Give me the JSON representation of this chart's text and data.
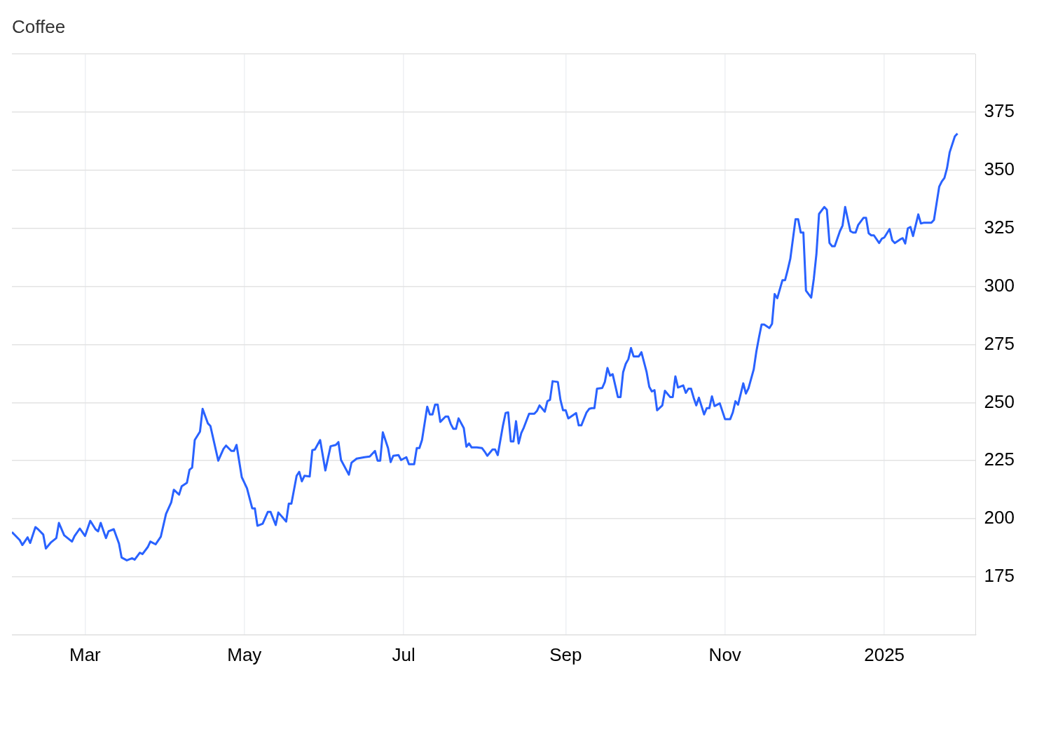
{
  "chart_data": {
    "type": "line",
    "title": "Coffee",
    "color": "#2962ff",
    "marker": "none",
    "grid": true,
    "xlim": [
      "2024-02-02",
      "2025-02-05"
    ],
    "xticks": [
      {
        "value": "2024-03-01",
        "label": "Mar"
      },
      {
        "value": "2024-05-01",
        "label": "May"
      },
      {
        "value": "2024-07-01",
        "label": "Jul"
      },
      {
        "value": "2024-09-01",
        "label": "Sep"
      },
      {
        "value": "2024-11-01",
        "label": "Nov"
      },
      {
        "value": "2025-01-01",
        "label": "2025"
      }
    ],
    "ylim": [
      150,
      400
    ],
    "yticks": [
      {
        "value": 150,
        "label": null
      },
      175,
      200,
      225,
      250,
      275,
      300,
      325,
      350,
      375,
      {
        "value": 400,
        "label": null
      }
    ],
    "x": [
      "2024-02-02",
      "2024-02-05",
      "2024-02-06",
      "2024-02-08",
      "2024-02-09",
      "2024-02-11",
      "2024-02-12",
      "2024-02-14",
      "2024-02-15",
      "2024-02-17",
      "2024-02-19",
      "2024-02-20",
      "2024-02-22",
      "2024-02-25",
      "2024-02-26",
      "2024-02-28",
      "2024-03-01",
      "2024-03-03",
      "2024-03-05",
      "2024-03-06",
      "2024-03-07",
      "2024-03-09",
      "2024-03-10",
      "2024-03-12",
      "2024-03-14",
      "2024-03-15",
      "2024-03-17",
      "2024-03-19",
      "2024-03-20",
      "2024-03-22",
      "2024-03-23",
      "2024-03-25",
      "2024-03-26",
      "2024-03-28",
      "2024-03-30",
      "2024-04-01",
      "2024-04-03",
      "2024-04-04",
      "2024-04-06",
      "2024-04-07",
      "2024-04-09",
      "2024-04-10",
      "2024-04-11",
      "2024-04-12",
      "2024-04-14",
      "2024-04-15",
      "2024-04-17",
      "2024-04-18",
      "2024-04-21",
      "2024-04-23",
      "2024-04-24",
      "2024-04-26",
      "2024-04-27",
      "2024-04-28",
      "2024-04-30",
      "2024-05-01",
      "2024-05-02",
      "2024-05-04",
      "2024-05-05",
      "2024-05-06",
      "2024-05-08",
      "2024-05-10",
      "2024-05-11",
      "2024-05-13",
      "2024-05-14",
      "2024-05-17",
      "2024-05-18",
      "2024-05-19",
      "2024-05-21",
      "2024-05-22",
      "2024-05-23",
      "2024-05-24",
      "2024-05-26",
      "2024-05-27",
      "2024-05-28",
      "2024-05-30",
      "2024-06-01",
      "2024-06-03",
      "2024-06-05",
      "2024-06-06",
      "2024-06-07",
      "2024-06-10",
      "2024-06-11",
      "2024-06-13",
      "2024-06-16",
      "2024-06-18",
      "2024-06-20",
      "2024-06-21",
      "2024-06-22",
      "2024-06-23",
      "2024-06-25",
      "2024-06-26",
      "2024-06-27",
      "2024-06-29",
      "2024-06-30",
      "2024-07-02",
      "2024-07-03",
      "2024-07-05",
      "2024-07-06",
      "2024-07-07",
      "2024-07-08",
      "2024-07-10",
      "2024-07-11",
      "2024-07-12",
      "2024-07-13",
      "2024-07-14",
      "2024-07-15",
      "2024-07-17",
      "2024-07-18",
      "2024-07-19",
      "2024-07-20",
      "2024-07-21",
      "2024-07-22",
      "2024-07-24",
      "2024-07-25",
      "2024-07-26",
      "2024-07-27",
      "2024-07-29",
      "2024-07-31",
      "2024-08-01",
      "2024-08-02",
      "2024-08-04",
      "2024-08-05",
      "2024-08-06",
      "2024-08-08",
      "2024-08-09",
      "2024-08-10",
      "2024-08-11",
      "2024-08-12",
      "2024-08-13",
      "2024-08-14",
      "2024-08-15",
      "2024-08-16",
      "2024-08-18",
      "2024-08-19",
      "2024-08-20",
      "2024-08-21",
      "2024-08-22",
      "2024-08-24",
      "2024-08-25",
      "2024-08-26",
      "2024-08-27",
      "2024-08-29",
      "2024-08-30",
      "2024-08-31",
      "2024-09-01",
      "2024-09-02",
      "2024-09-05",
      "2024-09-06",
      "2024-09-07",
      "2024-09-09",
      "2024-09-10",
      "2024-09-11",
      "2024-09-12",
      "2024-09-13",
      "2024-09-15",
      "2024-09-16",
      "2024-09-17",
      "2024-09-18",
      "2024-09-19",
      "2024-09-21",
      "2024-09-22",
      "2024-09-23",
      "2024-09-24",
      "2024-09-25",
      "2024-09-26",
      "2024-09-27",
      "2024-09-29",
      "2024-09-30",
      "2024-10-02",
      "2024-10-03",
      "2024-10-04",
      "2024-10-05",
      "2024-10-06",
      "2024-10-08",
      "2024-10-09",
      "2024-10-11",
      "2024-10-12",
      "2024-10-13",
      "2024-10-14",
      "2024-10-16",
      "2024-10-17",
      "2024-10-18",
      "2024-10-19",
      "2024-10-20",
      "2024-10-21",
      "2024-10-22",
      "2024-10-24",
      "2024-10-25",
      "2024-10-26",
      "2024-10-27",
      "2024-10-28",
      "2024-10-30",
      "2024-11-01",
      "2024-11-03",
      "2024-11-04",
      "2024-11-05",
      "2024-11-06",
      "2024-11-08",
      "2024-11-09",
      "2024-11-10",
      "2024-11-12",
      "2024-11-13",
      "2024-11-14",
      "2024-11-15",
      "2024-11-16",
      "2024-11-18",
      "2024-11-19",
      "2024-11-20",
      "2024-11-21",
      "2024-11-23",
      "2024-11-24",
      "2024-11-25",
      "2024-11-26",
      "2024-11-28",
      "2024-11-29",
      "2024-11-30",
      "2024-12-01",
      "2024-12-02",
      "2024-12-04",
      "2024-12-05",
      "2024-12-06",
      "2024-12-07",
      "2024-12-09",
      "2024-12-10",
      "2024-12-11",
      "2024-12-12",
      "2024-12-13",
      "2024-12-15",
      "2024-12-16",
      "2024-12-17",
      "2024-12-19",
      "2024-12-20",
      "2024-12-21",
      "2024-12-22",
      "2024-12-24",
      "2024-12-25",
      "2024-12-26",
      "2024-12-27",
      "2024-12-28",
      "2024-12-30",
      "2024-12-31",
      "2025-01-01",
      "2025-01-03",
      "2025-01-04",
      "2025-01-05",
      "2025-01-07",
      "2025-01-08",
      "2025-01-09",
      "2025-01-10",
      "2025-01-11",
      "2025-01-12",
      "2025-01-14",
      "2025-01-15",
      "2025-01-16",
      "2025-01-19",
      "2025-01-20",
      "2025-01-22",
      "2025-01-23",
      "2025-01-24",
      "2025-01-25",
      "2025-01-26",
      "2025-01-28",
      "2025-01-29"
    ],
    "values": [
      194.3,
      190.8,
      188.7,
      192.0,
      189.6,
      196.4,
      195.5,
      193.2,
      187.2,
      189.9,
      191.7,
      198.2,
      192.9,
      190.2,
      192.6,
      195.8,
      192.6,
      199.1,
      195.5,
      194.6,
      198.2,
      191.7,
      194.6,
      195.5,
      189.3,
      183.3,
      182.1,
      183.0,
      182.4,
      185.4,
      184.8,
      187.8,
      190.2,
      189.0,
      192.3,
      202.1,
      207.1,
      212.5,
      210.4,
      214.0,
      215.5,
      221.1,
      222.0,
      233.9,
      237.5,
      247.3,
      241.1,
      239.9,
      225.0,
      230.1,
      231.5,
      229.2,
      229.2,
      231.8,
      217.9,
      215.5,
      213.1,
      204.5,
      204.5,
      197.0,
      197.9,
      203.0,
      203.0,
      197.3,
      202.7,
      198.8,
      206.5,
      206.5,
      218.5,
      220.2,
      216.1,
      218.5,
      218.2,
      229.5,
      229.8,
      233.9,
      220.8,
      231.2,
      231.8,
      233.0,
      225.3,
      219.0,
      224.1,
      225.9,
      226.5,
      226.8,
      229.2,
      225.0,
      225.0,
      237.2,
      230.4,
      224.4,
      227.1,
      227.4,
      225.3,
      226.5,
      223.5,
      223.5,
      230.4,
      230.4,
      233.9,
      248.2,
      244.9,
      244.9,
      249.1,
      249.1,
      241.7,
      244.0,
      244.0,
      240.8,
      238.7,
      238.7,
      243.2,
      239.0,
      231.0,
      232.4,
      230.7,
      230.7,
      230.4,
      228.9,
      227.1,
      229.8,
      229.8,
      227.4,
      240.2,
      245.5,
      245.8,
      233.3,
      233.3,
      242.0,
      232.4,
      236.9,
      239.3,
      245.2,
      245.2,
      245.2,
      246.4,
      248.8,
      246.1,
      250.6,
      251.2,
      259.2,
      258.9,
      251.2,
      246.7,
      246.7,
      243.2,
      245.5,
      240.2,
      240.2,
      245.8,
      247.3,
      247.6,
      247.6,
      256.0,
      256.3,
      258.9,
      264.9,
      261.6,
      262.2,
      252.4,
      252.4,
      263.1,
      266.7,
      268.7,
      273.5,
      269.9,
      269.9,
      271.7,
      263.1,
      256.8,
      254.8,
      255.4,
      246.7,
      248.8,
      255.1,
      252.4,
      252.4,
      261.3,
      256.5,
      257.4,
      254.2,
      256.0,
      256.0,
      252.1,
      248.8,
      252.1,
      244.9,
      247.6,
      247.6,
      252.7,
      248.5,
      249.7,
      242.9,
      242.9,
      245.8,
      250.6,
      249.1,
      258.3,
      253.9,
      256.2,
      264.3,
      272.0,
      278.0,
      283.6,
      283.6,
      282.1,
      283.9,
      296.7,
      294.9,
      302.7,
      302.7,
      307.1,
      311.9,
      328.9,
      328.9,
      323.2,
      323.2,
      298.2,
      295.2,
      303.3,
      314.0,
      331.2,
      334.2,
      333.0,
      318.7,
      317.3,
      317.3,
      323.8,
      326.2,
      334.2,
      323.8,
      323.2,
      323.2,
      326.5,
      329.5,
      329.5,
      322.9,
      322.0,
      322.0,
      318.7,
      320.5,
      321.1,
      324.7,
      319.9,
      318.7,
      320.2,
      320.8,
      318.5,
      325.0,
      325.6,
      321.7,
      331.0,
      327.1,
      327.4,
      327.4,
      328.6,
      342.9,
      345.2,
      346.7,
      350.9,
      357.7,
      364.6,
      365.8
    ]
  }
}
